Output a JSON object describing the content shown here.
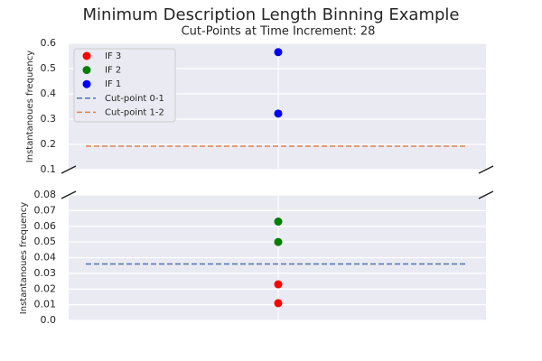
{
  "chart_data": {
    "type": "scatter",
    "title": "Minimum Description Length Binning Example",
    "subtitle": "Cut-Points at Time Increment: 28",
    "ylabel": "Instantanoues frequency",
    "legend": "upper left",
    "grid": true,
    "panels": [
      {
        "ylim": [
          0.1,
          0.6
        ],
        "yticks": [
          0.1,
          0.2,
          0.3,
          0.4,
          0.5,
          0.6
        ]
      },
      {
        "ylim": [
          0,
          0.08
        ],
        "yticks": [
          {
            "value": 0,
            "label": "0.0"
          },
          0.01,
          0.02,
          0.03,
          0.04,
          0.05,
          0.06,
          0.07,
          0.08
        ]
      }
    ],
    "series": [
      {
        "name": "IF 3",
        "color": "#ff0000",
        "values": [
          0.023,
          0.011
        ]
      },
      {
        "name": "IF 2",
        "color": "#008000",
        "values": [
          0.063,
          0.05
        ]
      },
      {
        "name": "IF 1",
        "color": "#0000ff",
        "values": [
          0.565,
          0.322
        ]
      }
    ],
    "cutpoints": [
      {
        "name": "Cut-point 0-1",
        "color": "#4c72b0",
        "value": 0.036
      },
      {
        "name": "Cut-point 1-2",
        "color": "#dd8452",
        "value": 0.193
      }
    ]
  }
}
